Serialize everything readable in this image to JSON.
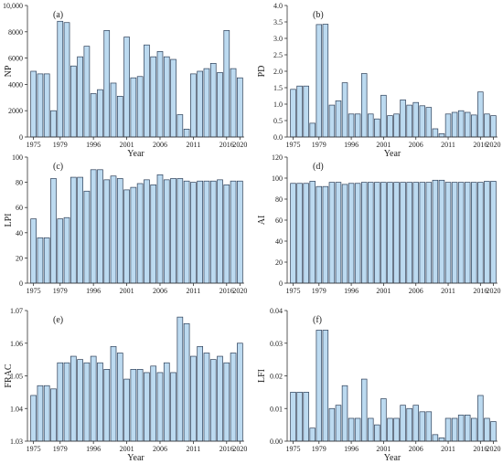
{
  "chart_data": [
    {
      "type": "bar",
      "panel_label": "(a)",
      "xlabel": "Year",
      "ylabel": "NP",
      "ylim": [
        0,
        10000
      ],
      "yticks": [
        "0",
        "2000",
        "4000",
        "6000",
        "8000",
        "10,000"
      ],
      "xticks": [
        "1975",
        "1979",
        "1996",
        "2001",
        "2006",
        "2011",
        "2016",
        "2020"
      ],
      "values": [
        5000,
        4800,
        4800,
        2000,
        8800,
        8700,
        5400,
        6100,
        6900,
        3300,
        3600,
        8100,
        4100,
        3100,
        7600,
        4500,
        4600,
        7000,
        6100,
        6500,
        6100,
        5900,
        1700,
        600,
        4800,
        5000,
        5200,
        5600,
        4900,
        8100,
        5200,
        4500
      ]
    },
    {
      "type": "bar",
      "panel_label": "(b)",
      "xlabel": "Year",
      "ylabel": "PD",
      "ylim": [
        0,
        4.0
      ],
      "yticks": [
        "0.0",
        "0.5",
        "1.0",
        "1.5",
        "2.0",
        "2.5",
        "3.0",
        "3.5",
        "4.0"
      ],
      "xticks": [
        "1975",
        "1979",
        "1996",
        "2001",
        "2006",
        "2011",
        "2016",
        "2020"
      ],
      "values": [
        1.45,
        1.55,
        1.55,
        0.42,
        3.42,
        3.43,
        0.97,
        1.1,
        1.65,
        0.7,
        0.7,
        1.93,
        0.7,
        0.55,
        1.27,
        0.65,
        0.7,
        1.13,
        0.97,
        1.05,
        0.95,
        0.9,
        0.25,
        0.1,
        0.7,
        0.75,
        0.8,
        0.75,
        0.67,
        1.37,
        0.7,
        0.65
      ]
    },
    {
      "type": "bar",
      "panel_label": "(c)",
      "xlabel": "",
      "ylabel": "LPI",
      "ylim": [
        0,
        100
      ],
      "yticks": [
        "0",
        "20",
        "40",
        "60",
        "80",
        "100"
      ],
      "xticks": [
        "1975",
        "1979",
        "1996",
        "2001",
        "2006",
        "2011",
        "2016",
        "2020"
      ],
      "values": [
        51,
        36,
        36,
        83,
        51,
        52,
        84,
        84,
        73,
        90,
        90,
        82,
        85,
        83,
        74,
        76,
        79,
        82,
        78,
        86,
        82,
        83,
        83,
        81,
        80,
        81,
        81,
        81,
        82,
        78,
        81,
        81
      ]
    },
    {
      "type": "bar",
      "panel_label": "(d)",
      "xlabel": "",
      "ylabel": "AI",
      "ylim": [
        0,
        120
      ],
      "yticks": [
        "0",
        "20",
        "40",
        "60",
        "80",
        "100",
        "120"
      ],
      "xticks": [
        "1975",
        "1979",
        "1996",
        "2001",
        "2006",
        "2011",
        "2016",
        "2020"
      ],
      "values": [
        95,
        95,
        95,
        97,
        92,
        92,
        96,
        96,
        94,
        95,
        95,
        96,
        96,
        96,
        96,
        96,
        96,
        96,
        96,
        96,
        96,
        96,
        98,
        98,
        96,
        96,
        96,
        96,
        96,
        96,
        97,
        97
      ]
    },
    {
      "type": "bar",
      "panel_label": "(e)",
      "xlabel": "Year",
      "ylabel": "FRAC",
      "ylim": [
        1.03,
        1.07
      ],
      "yticks": [
        "1.03",
        "1.04",
        "1.05",
        "1.06",
        "1.07"
      ],
      "xticks": [
        "1975",
        "1979",
        "1996",
        "2001",
        "2006",
        "2011",
        "2016",
        "2020"
      ],
      "values": [
        1.044,
        1.047,
        1.047,
        1.046,
        1.054,
        1.054,
        1.056,
        1.055,
        1.054,
        1.056,
        1.054,
        1.052,
        1.059,
        1.057,
        1.049,
        1.052,
        1.052,
        1.051,
        1.053,
        1.051,
        1.054,
        1.051,
        1.068,
        1.066,
        1.056,
        1.059,
        1.057,
        1.055,
        1.056,
        1.054,
        1.057,
        1.06
      ]
    },
    {
      "type": "bar",
      "panel_label": "(f)",
      "xlabel": "Year",
      "ylabel": "LFI",
      "ylim": [
        0,
        0.04
      ],
      "yticks": [
        "0.00",
        "0.01",
        "0.02",
        "0.03",
        "0.04"
      ],
      "xticks": [
        "1975",
        "1979",
        "1996",
        "2001",
        "2006",
        "2011",
        "2016",
        "2020"
      ],
      "values": [
        0.015,
        0.015,
        0.015,
        0.004,
        0.034,
        0.034,
        0.01,
        0.011,
        0.017,
        0.007,
        0.007,
        0.019,
        0.007,
        0.005,
        0.013,
        0.007,
        0.007,
        0.011,
        0.01,
        0.011,
        0.009,
        0.009,
        0.002,
        0.001,
        0.007,
        0.007,
        0.008,
        0.008,
        0.007,
        0.014,
        0.007,
        0.006
      ]
    }
  ]
}
